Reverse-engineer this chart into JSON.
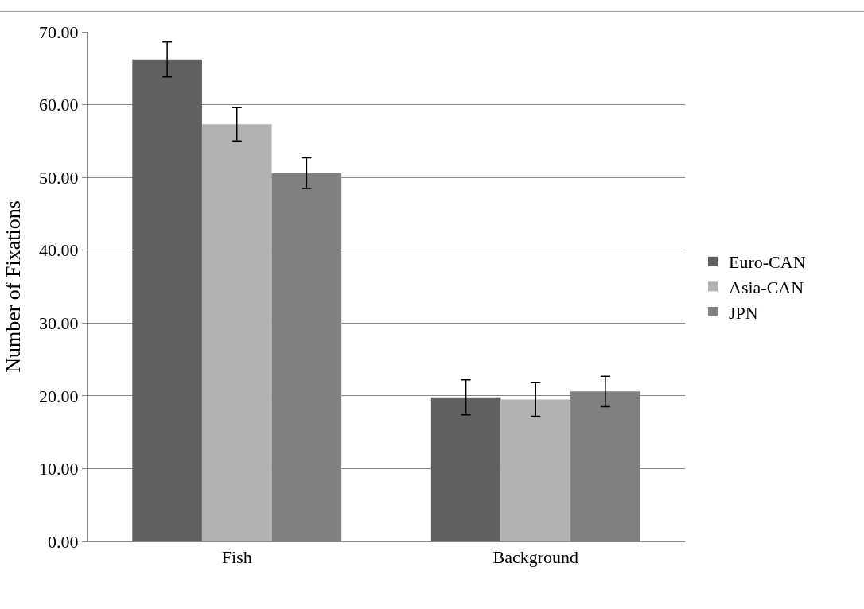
{
  "chart_data": {
    "type": "bar",
    "ylabel": "Number of Fixations",
    "categories": [
      "Fish",
      "Background"
    ],
    "series": [
      {
        "name": "Euro-CAN",
        "color": "#606060",
        "values": [
          66.2,
          19.8
        ],
        "errors": [
          2.4,
          2.4
        ]
      },
      {
        "name": "Asia-CAN",
        "color": "#b2b2b2",
        "values": [
          57.3,
          19.5
        ],
        "errors": [
          2.3,
          2.3
        ]
      },
      {
        "name": "JPN",
        "color": "#808080",
        "values": [
          50.6,
          20.6
        ],
        "errors": [
          2.1,
          2.1
        ]
      }
    ],
    "ylim": [
      0,
      70
    ],
    "yticks": [
      {
        "value": 0,
        "label": "0.00"
      },
      {
        "value": 10,
        "label": "10.00"
      },
      {
        "value": 20,
        "label": "20.00"
      },
      {
        "value": 30,
        "label": "30.00"
      },
      {
        "value": 40,
        "label": "40.00"
      },
      {
        "value": 50,
        "label": "50.00"
      },
      {
        "value": 60,
        "label": "60.00"
      },
      {
        "value": 70,
        "label": "70.00"
      }
    ],
    "grid": "y",
    "legend": "right"
  }
}
